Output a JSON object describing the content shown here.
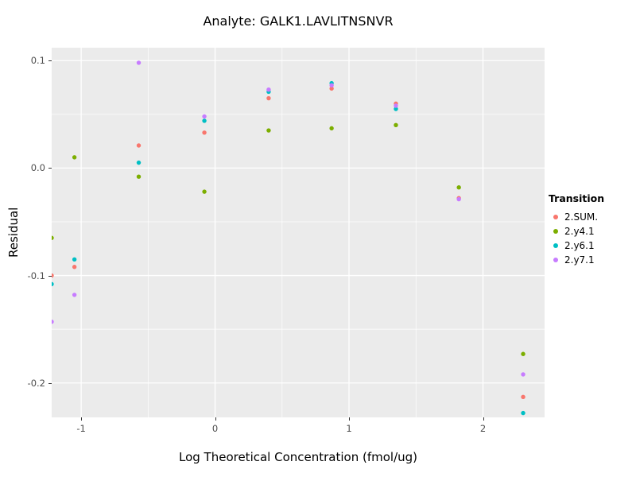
{
  "chart_data": {
    "type": "scatter",
    "title": "Analyte: GALK1.LAVLITNSNVR",
    "xlabel": "Log Theoretical Concentration (fmol/ug)",
    "ylabel": "Residual",
    "legend_title": "Transition",
    "legend_position": "right",
    "grid": true,
    "panel_background": "#EBEBEB",
    "gridline_color": "#FFFFFF",
    "tick_color": "#333333",
    "tick_label_color": "#4D4D4D",
    "xlim": [
      -1.22,
      2.46
    ],
    "ylim": [
      -0.232,
      0.112
    ],
    "x_ticks": [
      -1,
      0,
      1,
      2
    ],
    "x_tick_labels": [
      "-1",
      "0",
      "1",
      "2"
    ],
    "y_ticks": [
      0.1,
      0.0,
      -0.1,
      -0.2
    ],
    "y_tick_labels": [
      "0.1",
      "0.0",
      "-0.1",
      "-0.2"
    ],
    "x_minor_ticks": [
      -0.5,
      0.5,
      1.5
    ],
    "y_minor_ticks": [
      0.05,
      -0.05,
      -0.15
    ],
    "point_radius": 2.7,
    "series": [
      {
        "name": "2.SUM.",
        "color": "#F8766D",
        "points": [
          [
            -1.22,
            -0.1
          ],
          [
            -1.05,
            -0.092
          ],
          [
            -0.57,
            0.021
          ],
          [
            -0.08,
            0.033
          ],
          [
            0.4,
            0.065
          ],
          [
            0.87,
            0.074
          ],
          [
            1.35,
            0.06
          ],
          [
            1.82,
            -0.028
          ],
          [
            2.3,
            -0.213
          ]
        ]
      },
      {
        "name": "2.y4.1",
        "color": "#7CAE00",
        "points": [
          [
            -1.22,
            -0.065
          ],
          [
            -1.05,
            0.01
          ],
          [
            -0.57,
            -0.008
          ],
          [
            -0.08,
            -0.022
          ],
          [
            0.4,
            0.035
          ],
          [
            0.87,
            0.037
          ],
          [
            1.35,
            0.04
          ],
          [
            1.82,
            -0.018
          ],
          [
            2.3,
            -0.173
          ]
        ]
      },
      {
        "name": "2.y6.1",
        "color": "#00BFC4",
        "points": [
          [
            -1.22,
            -0.108
          ],
          [
            -1.05,
            -0.085
          ],
          [
            -0.57,
            0.005
          ],
          [
            -0.08,
            0.044
          ],
          [
            0.4,
            0.071
          ],
          [
            0.87,
            0.079
          ],
          [
            1.35,
            0.055
          ],
          [
            2.3,
            -0.228
          ]
        ]
      },
      {
        "name": "2.y7.1",
        "color": "#C77CFF",
        "points": [
          [
            -1.22,
            -0.143
          ],
          [
            -1.05,
            -0.118
          ],
          [
            -0.57,
            0.098
          ],
          [
            -0.08,
            0.048
          ],
          [
            0.4,
            0.073
          ],
          [
            0.87,
            0.077
          ],
          [
            1.35,
            0.058
          ],
          [
            1.82,
            -0.029
          ],
          [
            2.3,
            -0.192
          ]
        ]
      }
    ]
  }
}
